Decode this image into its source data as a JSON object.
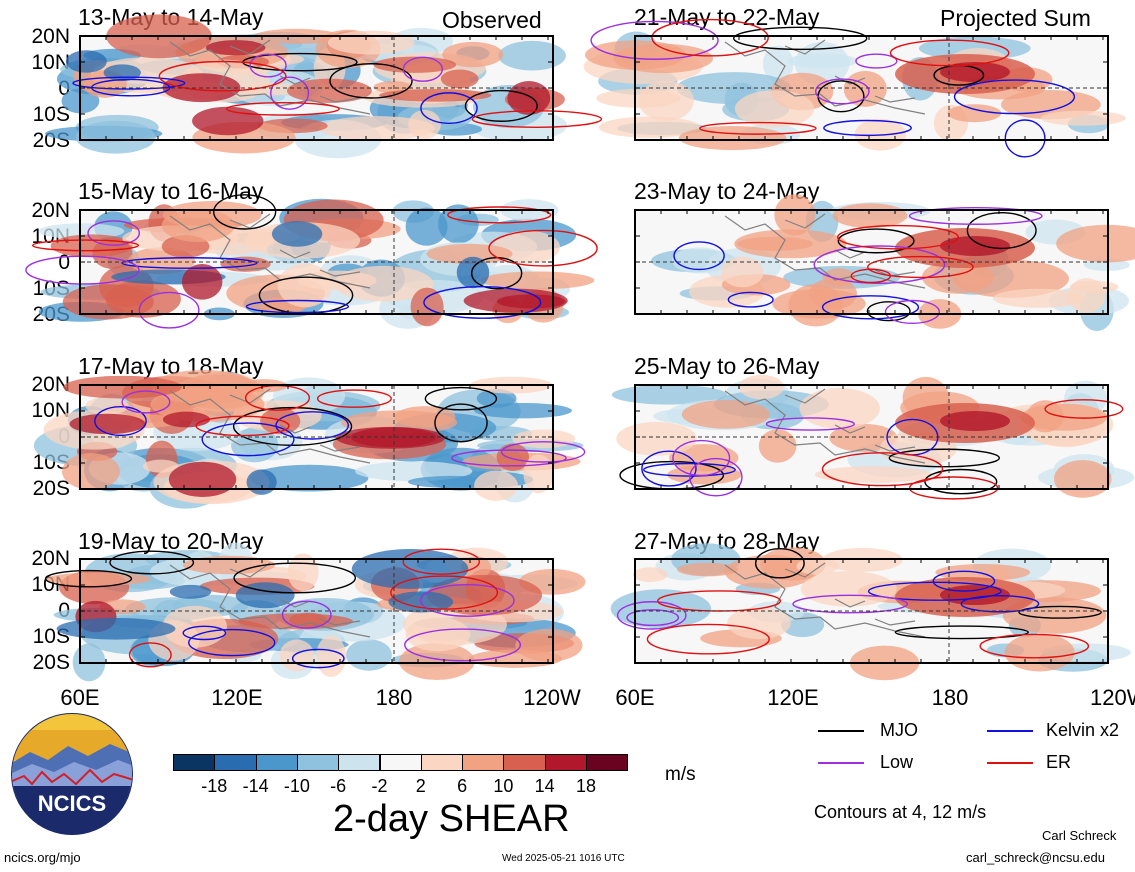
{
  "header": {
    "left_label": "Observed",
    "right_label": "Projected Sum"
  },
  "panels_left": [
    {
      "title": "13-May to 14-May"
    },
    {
      "title": "15-May to 16-May"
    },
    {
      "title": "17-May to 18-May"
    },
    {
      "title": "19-May to 20-May"
    }
  ],
  "panels_right": [
    {
      "title": "21-May to 22-May"
    },
    {
      "title": "23-May to 24-May"
    },
    {
      "title": "25-May to 26-May"
    },
    {
      "title": "27-May to 28-May"
    }
  ],
  "lat_labels": [
    "20N",
    "10N",
    "0",
    "10S",
    "20S"
  ],
  "lon_labels": [
    "60E",
    "120E",
    "180",
    "120W"
  ],
  "colorbar": {
    "title": "2-day SHEAR",
    "unit": "m/s",
    "ticks": [
      "-18",
      "-14",
      "-10",
      "-6",
      "-2",
      "2",
      "6",
      "10",
      "14",
      "18"
    ],
    "colors": [
      "#0a3563",
      "#2a6cb0",
      "#4b97cc",
      "#8fc2de",
      "#cde4ef",
      "#f7f7f7",
      "#fbd6c2",
      "#f1a283",
      "#d8604f",
      "#b1182b",
      "#6a0320"
    ]
  },
  "legend": {
    "mjo": {
      "label": "MJO",
      "color": "#000000"
    },
    "kelvin": {
      "label": "Kelvin x2",
      "color": "#1010e0"
    },
    "low": {
      "label": "Low",
      "color": "#9b30e0"
    },
    "er": {
      "label": "ER",
      "color": "#e01010"
    },
    "contours_note": "Contours at 4, 12 m/s"
  },
  "logo": {
    "text": "NCICS"
  },
  "footer": {
    "url": "ncics.org/mjo",
    "timestamp": "Wed 2025-05-21 1016 UTC",
    "author": "Carl Schreck",
    "email": "carl_schreck@ncsu.edu"
  }
}
